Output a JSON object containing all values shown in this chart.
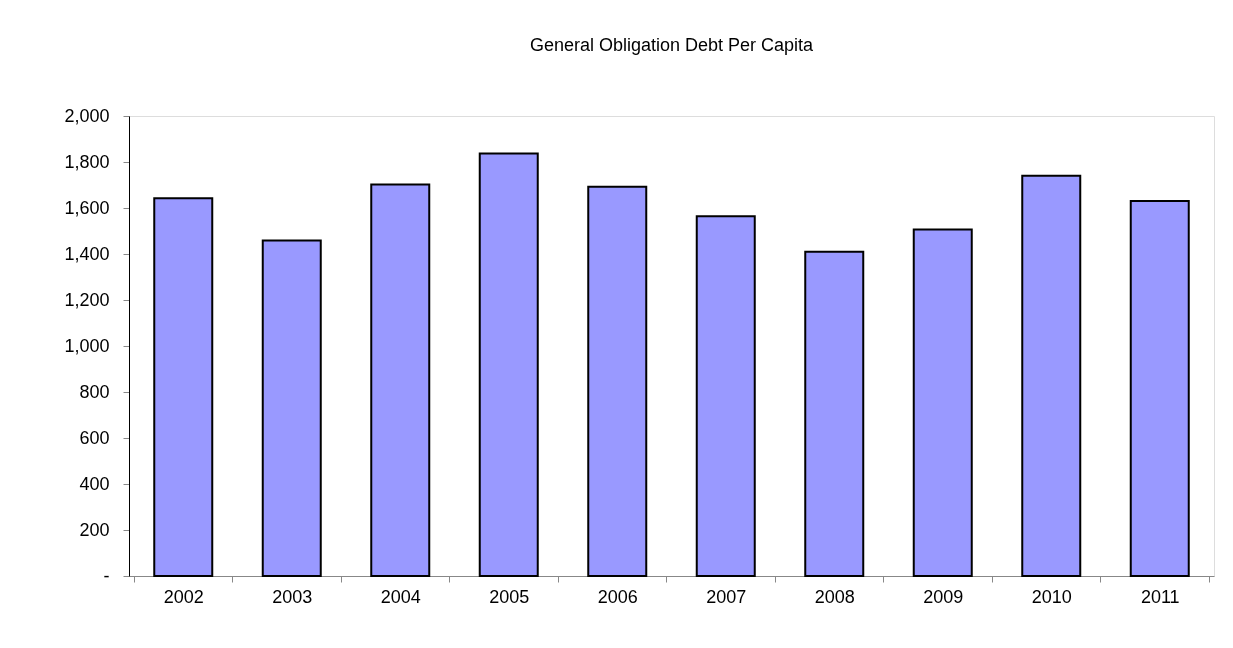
{
  "chart_data": {
    "type": "bar",
    "title": "General Obligation Debt Per Capita",
    "categories": [
      "2002",
      "2003",
      "2004",
      "2005",
      "2006",
      "2007",
      "2008",
      "2009",
      "2010",
      "2011"
    ],
    "values": [
      1642,
      1459,
      1702,
      1837,
      1692,
      1564,
      1410,
      1507,
      1740,
      1630
    ],
    "color": "#9999ff",
    "ylim": [
      0,
      2000
    ],
    "yticks": [
      {
        "value": 0,
        "label": "-"
      },
      {
        "value": 200,
        "label": "200"
      },
      {
        "value": 400,
        "label": "400"
      },
      {
        "value": 600,
        "label": "600"
      },
      {
        "value": 800,
        "label": "800"
      },
      {
        "value": 1000,
        "label": "1,000"
      },
      {
        "value": 1200,
        "label": "1,200"
      },
      {
        "value": 1400,
        "label": "1,400"
      },
      {
        "value": 1600,
        "label": "1,600"
      },
      {
        "value": 1800,
        "label": "1,800"
      },
      {
        "value": 2000,
        "label": "2,000"
      }
    ],
    "grid": false
  }
}
